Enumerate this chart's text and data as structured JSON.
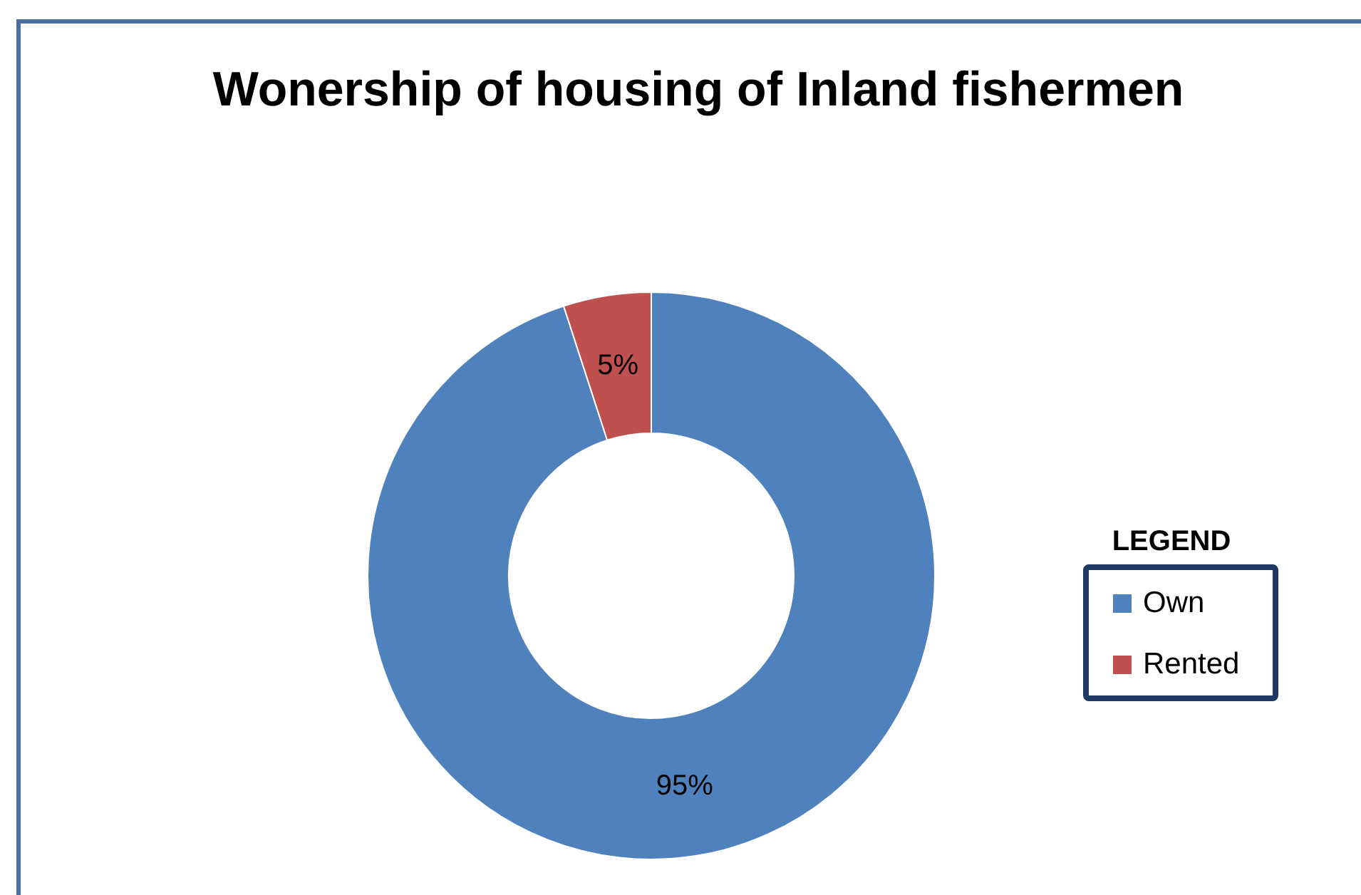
{
  "chart_data": {
    "type": "donut",
    "title": "Wonership of housing of Inland fishermen",
    "categories": [
      "Own",
      "Rented"
    ],
    "values": [
      95,
      5
    ],
    "colors": [
      "#4f81bd",
      "#c0504d"
    ],
    "value_labels": [
      "95%",
      "5%"
    ],
    "legend": "right",
    "legend_title": "LEGEND"
  }
}
